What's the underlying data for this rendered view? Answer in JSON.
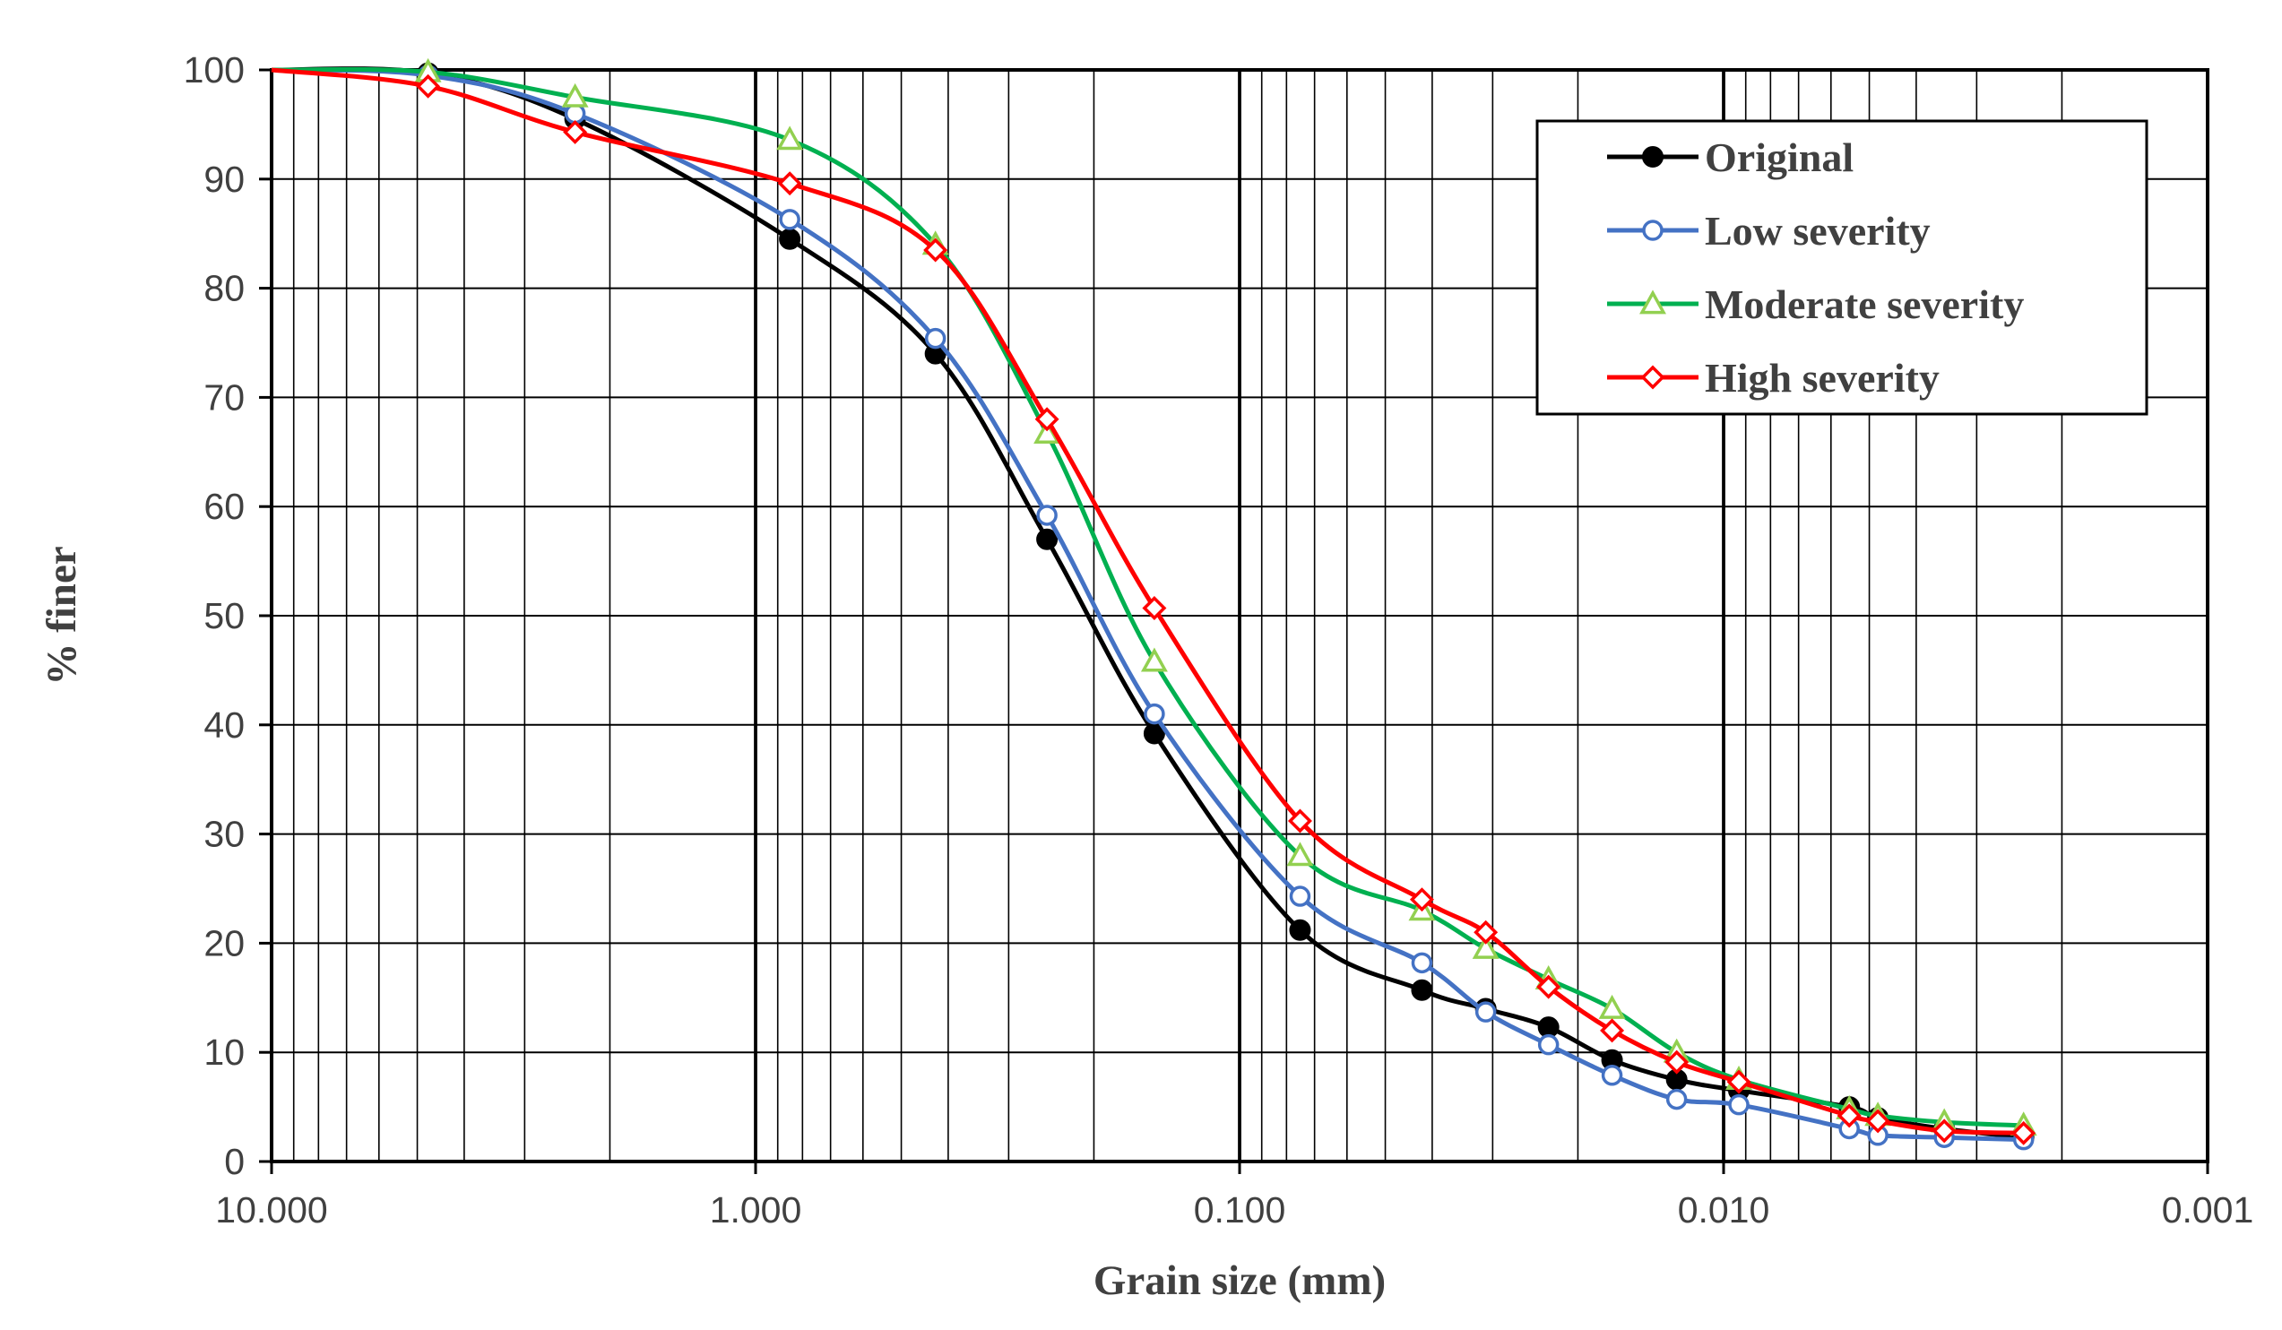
{
  "chart_data": {
    "type": "line",
    "xscale": "log",
    "x_reversed": true,
    "xlim": [
      10.0,
      0.001
    ],
    "ylim": [
      0,
      100
    ],
    "xlabel": "Grain size (mm)",
    "ylabel": "% finer",
    "grid": true,
    "legend_position": "top-right",
    "x_ticks": [
      {
        "value": 10,
        "label": "10.000"
      },
      {
        "value": 1,
        "label": "1.000"
      },
      {
        "value": 0.1,
        "label": "0.100"
      },
      {
        "value": 0.01,
        "label": "0.010"
      },
      {
        "value": 0.001,
        "label": "0.001"
      }
    ],
    "y_ticks": [
      0,
      10,
      20,
      30,
      40,
      50,
      60,
      70,
      80,
      90,
      100
    ],
    "series": [
      {
        "name": "Original",
        "color": "#000000",
        "marker": "circle-filled",
        "x": [
          10,
          4.75,
          2.36,
          0.85,
          0.425,
          0.25,
          0.15,
          0.075,
          0.042,
          0.031,
          0.023,
          0.017,
          0.0125,
          0.0093,
          0.0055,
          0.0048,
          0.0035,
          0.0024
        ],
        "y": [
          100,
          99.7,
          95.5,
          84.5,
          74,
          57,
          39.2,
          21.2,
          15.7,
          14,
          12.3,
          9.3,
          7.5,
          6.5,
          5,
          4,
          3,
          2.2
        ]
      },
      {
        "name": "Low severity",
        "color": "#4472C4",
        "marker": "circle-open",
        "x": [
          10,
          4.75,
          2.36,
          0.85,
          0.425,
          0.25,
          0.15,
          0.075,
          0.042,
          0.031,
          0.023,
          0.017,
          0.0125,
          0.0093,
          0.0055,
          0.0048,
          0.0035,
          0.0024
        ],
        "y": [
          100,
          99.5,
          96,
          86.3,
          75.4,
          59.2,
          41,
          24.3,
          18.2,
          13.7,
          10.7,
          7.9,
          5.7,
          5.2,
          3,
          2.4,
          2.2,
          2
        ]
      },
      {
        "name": "Moderate severity",
        "color": "#00B050",
        "marker": "triangle-open",
        "x": [
          10,
          4.75,
          2.36,
          0.85,
          0.425,
          0.25,
          0.15,
          0.075,
          0.042,
          0.031,
          0.023,
          0.017,
          0.0125,
          0.0093,
          0.0055,
          0.0048,
          0.0035,
          0.0024
        ],
        "y": [
          100,
          99.8,
          97.5,
          93.6,
          84,
          66.7,
          45.8,
          28,
          23,
          19.5,
          16.7,
          14,
          10,
          7.5,
          4.8,
          4.2,
          3.6,
          3.3
        ]
      },
      {
        "name": "High severity",
        "color": "#FF0000",
        "marker": "diamond-open",
        "x": [
          10,
          4.75,
          2.36,
          0.85,
          0.425,
          0.25,
          0.15,
          0.075,
          0.042,
          0.031,
          0.023,
          0.017,
          0.0125,
          0.0093,
          0.0055,
          0.0048,
          0.0035,
          0.0024
        ],
        "y": [
          100,
          98.5,
          94.3,
          89.6,
          83.5,
          68,
          50.7,
          31.2,
          24,
          21,
          16,
          12,
          9.1,
          7.3,
          4.2,
          3.7,
          2.8,
          2.6
        ]
      }
    ]
  }
}
